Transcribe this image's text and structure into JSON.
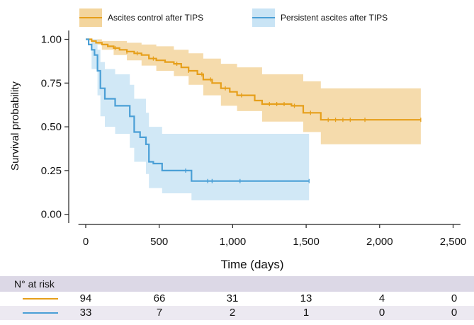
{
  "chart_data": {
    "type": "line",
    "subtype": "kaplan-meier survival curve with confidence bands",
    "xlabel": "Time (days)",
    "ylabel": "Survival probability",
    "xlim": [
      -50,
      2550
    ],
    "ylim": [
      -0.05,
      1.05
    ],
    "x_ticks": [
      0,
      500,
      1000,
      1500,
      2000,
      2500
    ],
    "x_tick_labels": [
      "0",
      "500",
      "1,000",
      "1,500",
      "2,000",
      "2,500"
    ],
    "y_ticks": [
      0,
      0.25,
      0.5,
      0.75,
      1.0
    ],
    "y_tick_labels": [
      "0.00",
      "0.25",
      "0.50",
      "0.75",
      "1.00"
    ],
    "grid": false,
    "legend_position": "top",
    "series": [
      {
        "name": "Ascites control after TIPS",
        "color": "#e69f1a",
        "band_color": "#f3d59d",
        "steps": [
          [
            0,
            1.0
          ],
          [
            40,
            0.99
          ],
          [
            70,
            0.98
          ],
          [
            110,
            0.97
          ],
          [
            150,
            0.96
          ],
          [
            190,
            0.95
          ],
          [
            230,
            0.94
          ],
          [
            280,
            0.93
          ],
          [
            330,
            0.92
          ],
          [
            380,
            0.91
          ],
          [
            430,
            0.89
          ],
          [
            480,
            0.88
          ],
          [
            540,
            0.87
          ],
          [
            600,
            0.86
          ],
          [
            650,
            0.84
          ],
          [
            700,
            0.82
          ],
          [
            760,
            0.8
          ],
          [
            800,
            0.77
          ],
          [
            860,
            0.75
          ],
          [
            920,
            0.72
          ],
          [
            980,
            0.7
          ],
          [
            1030,
            0.68
          ],
          [
            1150,
            0.65
          ],
          [
            1200,
            0.63
          ],
          [
            1400,
            0.62
          ],
          [
            1480,
            0.58
          ],
          [
            1600,
            0.54
          ],
          [
            2280,
            0.54
          ]
        ],
        "lower": [
          [
            0,
            1.0
          ],
          [
            40,
            0.97
          ],
          [
            110,
            0.94
          ],
          [
            190,
            0.91
          ],
          [
            280,
            0.88
          ],
          [
            380,
            0.85
          ],
          [
            480,
            0.82
          ],
          [
            600,
            0.79
          ],
          [
            700,
            0.74
          ],
          [
            800,
            0.68
          ],
          [
            920,
            0.62
          ],
          [
            1030,
            0.59
          ],
          [
            1200,
            0.53
          ],
          [
            1480,
            0.47
          ],
          [
            1600,
            0.4
          ],
          [
            2280,
            0.4
          ]
        ],
        "upper": [
          [
            0,
            1.0
          ],
          [
            40,
            1.0
          ],
          [
            110,
            0.99
          ],
          [
            190,
            0.99
          ],
          [
            280,
            0.98
          ],
          [
            380,
            0.97
          ],
          [
            480,
            0.96
          ],
          [
            600,
            0.94
          ],
          [
            700,
            0.92
          ],
          [
            800,
            0.89
          ],
          [
            920,
            0.86
          ],
          [
            1030,
            0.84
          ],
          [
            1200,
            0.8
          ],
          [
            1480,
            0.76
          ],
          [
            1600,
            0.72
          ],
          [
            2280,
            0.72
          ]
        ],
        "censor_x": [
          200,
          280,
          350,
          460,
          620,
          700,
          790,
          850,
          950,
          1060,
          1250,
          1300,
          1350,
          1420,
          1530,
          1650,
          1700,
          1750,
          1800,
          1900,
          2280
        ]
      },
      {
        "name": "Persistent ascites after TIPS",
        "color": "#4a9fd6",
        "band_color": "#c9e4f5",
        "steps": [
          [
            0,
            1.0
          ],
          [
            20,
            0.97
          ],
          [
            40,
            0.94
          ],
          [
            60,
            0.91
          ],
          [
            80,
            0.82
          ],
          [
            100,
            0.72
          ],
          [
            130,
            0.66
          ],
          [
            200,
            0.62
          ],
          [
            300,
            0.56
          ],
          [
            330,
            0.47
          ],
          [
            370,
            0.44
          ],
          [
            410,
            0.4
          ],
          [
            430,
            0.3
          ],
          [
            460,
            0.29
          ],
          [
            520,
            0.25
          ],
          [
            720,
            0.19
          ],
          [
            1520,
            0.19
          ]
        ],
        "lower": [
          [
            0,
            1.0
          ],
          [
            40,
            0.83
          ],
          [
            80,
            0.68
          ],
          [
            100,
            0.56
          ],
          [
            130,
            0.5
          ],
          [
            200,
            0.46
          ],
          [
            300,
            0.38
          ],
          [
            330,
            0.3
          ],
          [
            410,
            0.23
          ],
          [
            430,
            0.15
          ],
          [
            520,
            0.12
          ],
          [
            720,
            0.08
          ],
          [
            1520,
            0.08
          ]
        ],
        "upper": [
          [
            0,
            1.0
          ],
          [
            40,
            1.0
          ],
          [
            80,
            0.94
          ],
          [
            100,
            0.87
          ],
          [
            130,
            0.83
          ],
          [
            200,
            0.8
          ],
          [
            300,
            0.74
          ],
          [
            330,
            0.66
          ],
          [
            410,
            0.58
          ],
          [
            430,
            0.5
          ],
          [
            520,
            0.46
          ],
          [
            720,
            0.46
          ],
          [
            1520,
            0.46
          ]
        ],
        "censor_x": [
          680,
          830,
          860,
          1050,
          1520
        ]
      }
    ]
  },
  "risk_table": {
    "title": "N° at risk",
    "rows": [
      {
        "series": "Ascites control after TIPS",
        "color": "#e69f1a",
        "values": [
          "94",
          "66",
          "31",
          "13",
          "4",
          "0"
        ]
      },
      {
        "series": "Persistent ascites after TIPS",
        "color": "#4a9fd6",
        "values": [
          "33",
          "7",
          "2",
          "1",
          "0",
          "0"
        ]
      }
    ]
  }
}
